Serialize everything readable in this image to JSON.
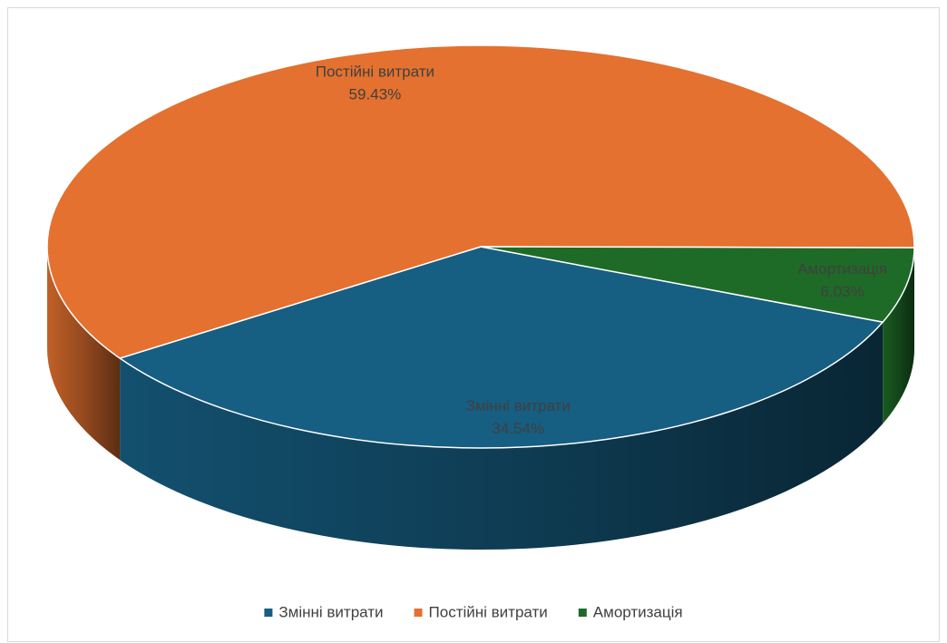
{
  "chart_data": {
    "type": "pie3d",
    "categories": [
      "Змінні витрати",
      "Постійні витрати",
      "Амортизація"
    ],
    "values": [
      34.54,
      59.43,
      6.03
    ],
    "value_labels": [
      "34.54%",
      "59.43%",
      "6.03%"
    ],
    "colors": [
      "#165e82",
      "#e4712f",
      "#1e6b27"
    ],
    "legend": "bottom"
  }
}
